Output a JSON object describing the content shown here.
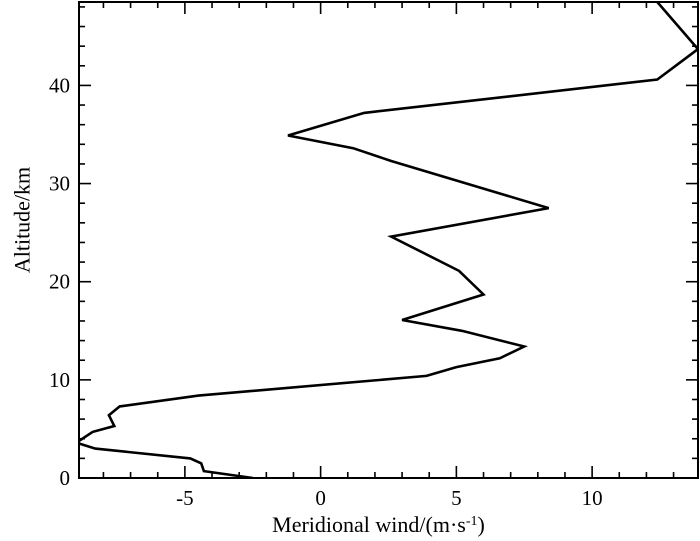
{
  "chart_data": {
    "type": "line",
    "xlabel": "Meridional wind/(m·s",
    "xlabel_sup": "-1",
    "xlabel_suffix": ")",
    "ylabel": "Altitude/km",
    "xlim": [
      -8.9,
      13.9
    ],
    "ylim": [
      0,
      48.5
    ],
    "xticks": [
      -5,
      0,
      5,
      10
    ],
    "xtick_labels": [
      "-5",
      "0",
      "5",
      "10"
    ],
    "yticks": [
      0,
      10,
      20,
      30,
      40
    ],
    "ytick_labels": [
      "0",
      "10",
      "20",
      "30",
      "40"
    ],
    "grid": false,
    "legend": "none",
    "line_color": "#000000",
    "series": [
      {
        "x": [
          -2.5,
          -4.3,
          -4.4,
          -4.8,
          -8.3,
          -9.0,
          -8.4,
          -7.6,
          -7.8,
          -7.4,
          -4.5,
          3.9,
          5.0,
          6.6,
          7.5,
          5.2,
          3.0,
          6.0,
          5.1,
          2.6,
          8.4,
          2.6,
          1.2,
          -1.2,
          1.6,
          12.4,
          13.9,
          12.4
        ],
        "y": [
          0.0,
          0.7,
          1.5,
          2.0,
          3.0,
          3.6,
          4.7,
          5.3,
          6.4,
          7.3,
          8.4,
          10.4,
          11.3,
          12.2,
          13.4,
          15.0,
          16.1,
          18.7,
          21.1,
          24.6,
          27.5,
          32.3,
          33.6,
          34.9,
          37.2,
          40.6,
          43.7,
          48.5
        ]
      }
    ]
  }
}
